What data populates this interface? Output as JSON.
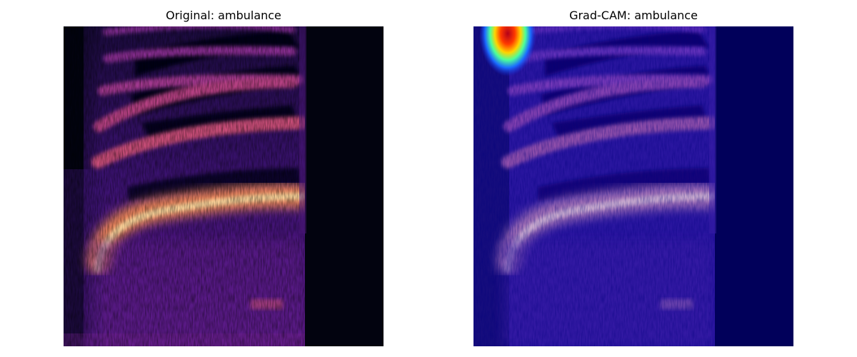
{
  "panels": {
    "original": {
      "title": "Original: ambulance",
      "image_kind": "spectrogram",
      "colormap": "magma"
    },
    "gradcam": {
      "title": "Grad-CAM: ambulance",
      "image_kind": "spectrogram-with-heatmap-overlay",
      "colormap": "jet-overlay"
    }
  },
  "colors": {
    "background": "#ffffff",
    "spectrogram_dark": "#02030f",
    "gradcam_background": "#01005a",
    "heat_hot": "#c8001e"
  }
}
